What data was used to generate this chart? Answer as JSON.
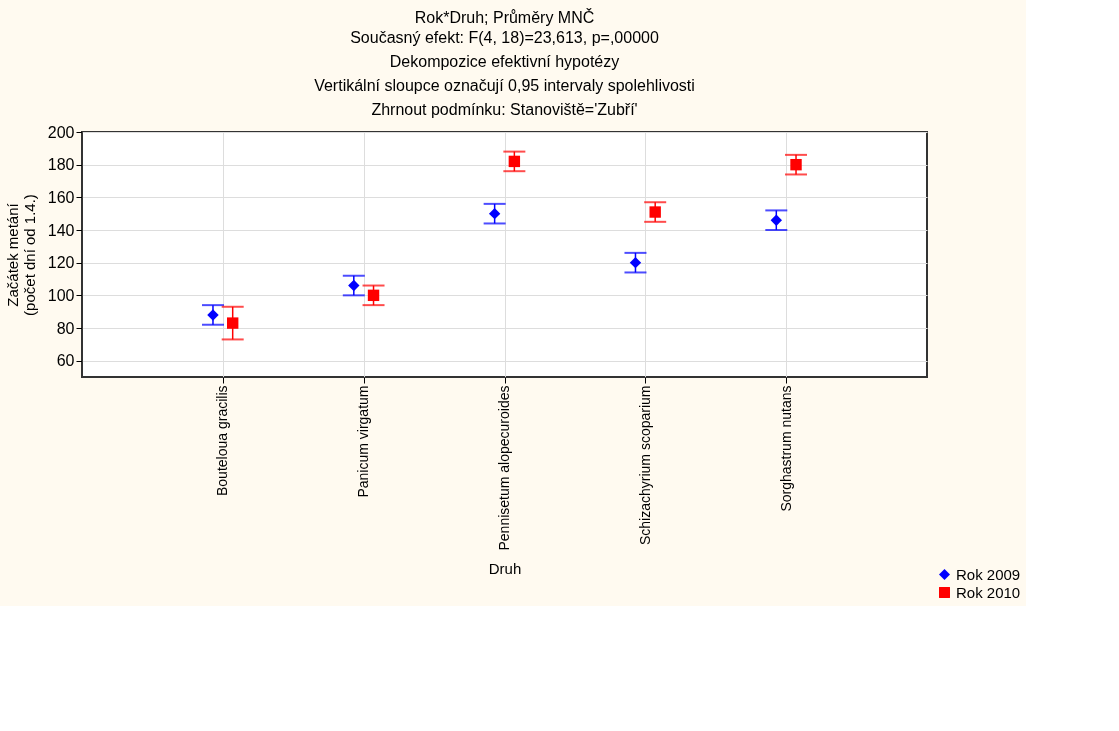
{
  "chart_data": {
    "type": "scatter",
    "title": "Rok*Druh; Průměry MNČ",
    "subtitle": "Současný efekt: F(4, 18)=23,613, p=,00000\nDekompozice efektivní hypotézy\nVertikální sloupce označují 0,95 intervaly spolehlivosti\nZhrnout podmínku: Stanoviště='Zubří'",
    "xlabel": "Druh",
    "ylabel": "Začátek metání\n(počet dní od 1.4.)",
    "categories": [
      "Bouteloua gracilis",
      "Panicum virgatum",
      "Pennisetum alopecuroides",
      "Schizachyrium scoparium",
      "Sorghastrum nutans"
    ],
    "series": [
      {
        "name": "Rok 2009",
        "color": "#0000ff",
        "marker": "diamond",
        "values": [
          88,
          106,
          150,
          120,
          146
        ],
        "errors": [
          6,
          6,
          6,
          6,
          6
        ]
      },
      {
        "name": "Rok 2010",
        "color": "#ff0000",
        "marker": "square",
        "values": [
          83,
          100,
          182,
          151,
          180
        ],
        "errors": [
          10,
          6,
          6,
          6,
          6
        ]
      }
    ],
    "ylim": [
      50,
      200
    ],
    "yticks": [
      60,
      80,
      100,
      120,
      140,
      160,
      180,
      200
    ],
    "grid": true,
    "legend": "bottom right"
  }
}
